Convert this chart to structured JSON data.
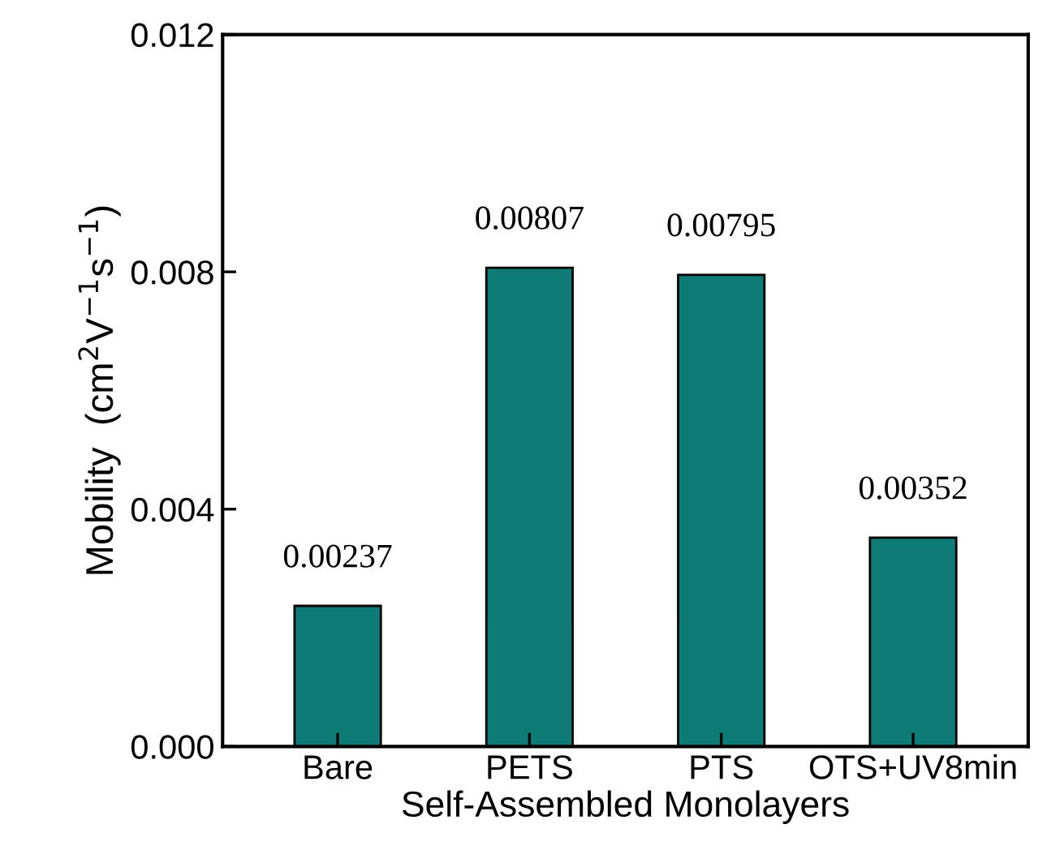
{
  "chart_data": {
    "type": "bar",
    "categories": [
      "Bare",
      "PETS",
      "PTS",
      "OTS+UV8min"
    ],
    "values": [
      0.00237,
      0.00807,
      0.00795,
      0.00352
    ],
    "color": "#0f7b76",
    "xlabel": "Self-Assembled Monolayers",
    "ylabel": "Mobility  (cm$^{2}$V$^{−1}$s$^{−1}$)",
    "ylim": [
      0,
      0.012
    ],
    "yticks": [
      {
        "value": 0,
        "label": "0.000"
      },
      {
        "value": 0.004,
        "label": "0.004"
      },
      {
        "value": 0.008,
        "label": "0.008"
      },
      {
        "value": 0.012,
        "label": "0.012"
      }
    ],
    "data_labels": true,
    "grid": false,
    "legend": false
  }
}
